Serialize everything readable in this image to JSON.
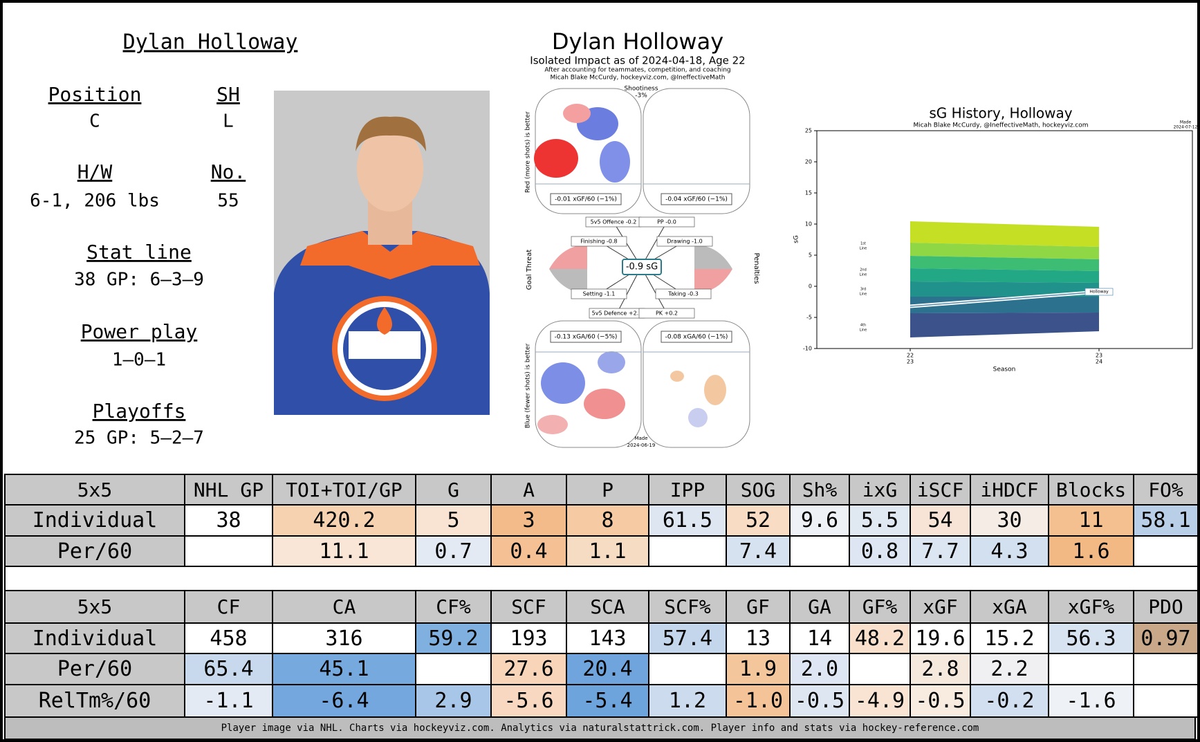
{
  "player": {
    "name": "Dylan Holloway",
    "position_label": "Position",
    "position": "C",
    "shoots_label": "SH",
    "shoots": "L",
    "hw_label": "H/W",
    "hw": "6-1, 206 lbs",
    "number_label": "No.",
    "number": "55",
    "stat_line_label": "Stat line",
    "stat_line": "38 GP: 6–3–9",
    "power_play_label": "Power play",
    "power_play": "1–0–1",
    "playoffs_label": "Playoffs",
    "playoffs": "25 GP: 5–2–7"
  },
  "impact": {
    "title": "Dylan Holloway",
    "subtitle": "Isolated Impact as of 2024-04-18, Age 22",
    "note": "After accounting for teammates, competition, and coaching",
    "credit": "Micah Blake McCurdy, hockeyviz.com, @IneffectiveMath",
    "shootiness_label": "Shootiness",
    "shootiness": "-3%",
    "offence_axis": "Red (more shots) is better",
    "defence_axis": "Blue (fewer shots) is better",
    "ev_xgf": "-0.01 xGF/60 (−1%)",
    "pp_xgf": "-0.04 xGF/60 (−1%)",
    "ev_xga": "-0.13 xGA/60 (−5%)",
    "pk_xga": "-0.08 xGA/60 (−1%)",
    "components": [
      "5v5 Offence -0.2",
      "PP -0.0",
      "Finishing -0.8",
      "Drawing -1.0",
      "Setting -1.1",
      "Taking -0.3",
      "5v5 Defence +2.2",
      "PK +0.2"
    ],
    "total": "-0.9 sG",
    "goal_threat": "Goal Threat",
    "penalties": "Penalties",
    "made": "Made",
    "made_date": "2024-06-19"
  },
  "sg_history": {
    "title": "sG History, Holloway",
    "subtitle": "Micah Blake McCurdy, @IneffectiveMath, hockeyviz.com",
    "made": "Made",
    "made_date": "2024-07-12",
    "ylabel": "sG",
    "xlabel": "Season",
    "ylim": [
      -10,
      25
    ],
    "yticks": [
      -10,
      -5,
      0,
      5,
      10,
      15,
      20,
      25
    ],
    "seasons": [
      [
        "22",
        "23"
      ],
      [
        "23",
        "24"
      ]
    ],
    "line_labels": [
      [
        "1st",
        "Line"
      ],
      [
        "2nd",
        "Line"
      ],
      [
        "3rd",
        "Line"
      ],
      [
        "4th",
        "Line"
      ]
    ],
    "player_label": "Holloway"
  },
  "tables": [
    {
      "header": [
        "5x5",
        "NHL GP",
        "TOI+TOI/GP",
        "G",
        "A",
        "P",
        "IPP",
        "SOG",
        "Sh%",
        "ixG",
        "iSCF",
        "iHDCF",
        "Blocks",
        "FO%"
      ],
      "rows": [
        {
          "label": "Individual",
          "values": [
            38,
            420.2,
            5,
            3,
            8,
            61.5,
            52,
            9.6,
            5.5,
            54,
            30,
            11,
            58.1
          ],
          "colors": [
            "#ffffff",
            "#f6d2b0",
            "#f9e4d4",
            "#f4bb8a",
            "#f6cba4",
            "#dde6f1",
            "#f8dcc4",
            "#eef1f6",
            "#e0e8f2",
            "#f8e4d6",
            "#f5ece6",
            "#f4c090",
            "#b9cfe8"
          ]
        },
        {
          "label": "Per/60",
          "values": [
            null,
            11.1,
            0.7,
            0.4,
            1.1,
            null,
            7.4,
            null,
            0.8,
            7.7,
            4.3,
            1.6,
            null
          ],
          "colors": [
            "#ffffff",
            "#fae6d6",
            "#e3eaf3",
            "#f4c094",
            "#f7dcc4",
            "#ffffff",
            "#d6e2f0",
            "#ffffff",
            "#dde6f2",
            "#dce6f2",
            "#d3e0ef",
            "#f3b985",
            "#ffffff"
          ]
        }
      ]
    },
    {
      "header": [
        "5x5",
        "CF",
        "CA",
        "CF%",
        "SCF",
        "SCA",
        "SCF%",
        "GF",
        "GA",
        "GF%",
        "xGF",
        "xGA",
        "xGF%",
        "PDO"
      ],
      "rows": [
        {
          "label": "Individual",
          "values": [
            458,
            316,
            59.2,
            193,
            143,
            57.4,
            13,
            14,
            48.2,
            19.6,
            15.2,
            56.3,
            0.97
          ],
          "colors": [
            "#ffffff",
            "#ffffff",
            "#7fb0e0",
            "#ffffff",
            "#ffffff",
            "#c4d6ec",
            "#ffffff",
            "#ffffff",
            "#f8e0cc",
            "#ffffff",
            "#ffffff",
            "#d8e3f1",
            "#c8a888"
          ]
        },
        {
          "label": "Per/60",
          "values": [
            65.4,
            45.1,
            null,
            27.6,
            20.4,
            null,
            1.9,
            2.0,
            null,
            2.8,
            2.2,
            null,
            null
          ],
          "value_labels": [
            "65.4",
            "45.1",
            null,
            "27.6",
            "20.4",
            null,
            "1.9",
            "2.0",
            null,
            "2.8",
            "2.2",
            null,
            null
          ],
          "colors": [
            "#c8d9ee",
            "#76a9de",
            "#ffffff",
            "#f8d5b8",
            "#6fa4dc",
            "#ffffff",
            "#f4c69c",
            "#dde6f2",
            "#ffffff",
            "#f5e8dc",
            "#f0f0f2",
            "#ffffff",
            "#ffffff"
          ]
        },
        {
          "label": "RelTm%/60",
          "values": [
            -1.1,
            -6.4,
            2.9,
            -5.6,
            -5.4,
            1.2,
            -1.0,
            -0.5,
            -4.9,
            -0.5,
            -0.2,
            -1.6,
            null
          ],
          "value_labels": [
            "-1.1",
            "-6.4",
            "2.9",
            "-5.6",
            "-5.4",
            "1.2",
            "-1.0",
            "-0.5",
            "-4.9",
            "-0.5",
            "-0.2",
            "-1.6",
            null
          ],
          "colors": [
            "#e3eaf4",
            "#74a7de",
            "#a8c6e8",
            "#f8d8c0",
            "#6ea4dc",
            "#ccdcee",
            "#f4c498",
            "#dde6f1",
            "#f9e4d4",
            "#f8ebe0",
            "#d2dff0",
            "#eef1f6",
            "#ffffff"
          ]
        }
      ]
    }
  ],
  "footer": "Player image via NHL. Charts via hockeyviz.com. Analytics via naturalstattrick.com. Player info and stats via hockey-reference.com"
}
